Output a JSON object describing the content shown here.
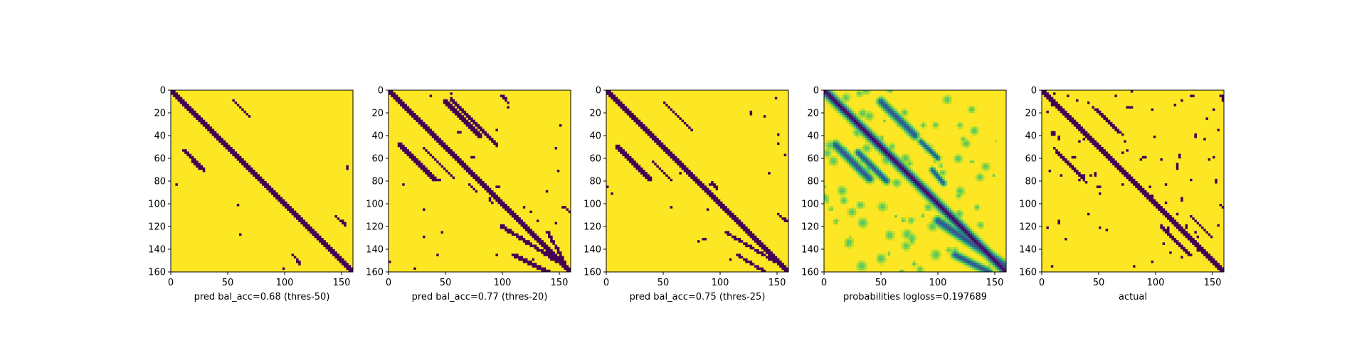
{
  "chart_data": [
    {
      "type": "heatmap",
      "xlabel": "pred bal_acc=0.68 (thres-50)",
      "mode": "binary",
      "xlim": [
        0,
        160
      ],
      "ylim": [
        160,
        0
      ],
      "xticks": [
        0,
        50,
        100,
        150
      ],
      "yticks": [
        0,
        20,
        40,
        60,
        80,
        100,
        120,
        140,
        160
      ],
      "features": {
        "diagonal": {
          "width": 1.6
        },
        "segments": [
          {
            "from": [
              12,
              53
            ],
            "to": [
              30,
              70
            ],
            "width": 1.1
          },
          {
            "from": [
              18,
              62
            ],
            "to": [
              30,
              72
            ],
            "width": 1.0
          },
          {
            "from": [
              55,
              9
            ],
            "to": [
              70,
              24
            ],
            "width": 1.0
          },
          {
            "from": [
              107,
              145
            ],
            "to": [
              113,
              152
            ],
            "width": 1.0
          },
          {
            "from": [
              145,
              111
            ],
            "to": [
              153,
              118
            ],
            "width": 1.0
          }
        ],
        "noise": 10
      }
    },
    {
      "type": "heatmap",
      "xlabel": "pred bal_acc=0.77 (thres-20)",
      "mode": "binary",
      "xlim": [
        0,
        160
      ],
      "ylim": [
        160,
        0
      ],
      "xticks": [
        0,
        50,
        100,
        150
      ],
      "yticks": [
        0,
        20,
        40,
        60,
        80,
        100,
        120,
        140,
        160
      ],
      "features": {
        "diagonal": {
          "width": 2.2
        },
        "segments": [
          {
            "from": [
              10,
              48
            ],
            "to": [
              40,
              78
            ],
            "width": 1.6
          },
          {
            "from": [
              30,
              50
            ],
            "to": [
              58,
              78
            ],
            "width": 1.4
          },
          {
            "from": [
              50,
              10
            ],
            "to": [
              80,
              40
            ],
            "width": 1.5
          },
          {
            "from": [
              55,
              8
            ],
            "to": [
              95,
              48
            ],
            "width": 1.0
          },
          {
            "from": [
              100,
              120
            ],
            "to": [
              160,
              158
            ],
            "width": 1.5
          },
          {
            "from": [
              110,
              145
            ],
            "to": [
              140,
              160
            ],
            "width": 1.5
          },
          {
            "from": [
              155,
              103
            ],
            "to": [
              160,
              108
            ],
            "width": 1.2
          },
          {
            "from": [
              140,
              125
            ],
            "to": [
              158,
              158
            ],
            "width": 1.2
          },
          {
            "from": [
              100,
              5
            ],
            "to": [
              106,
              12
            ],
            "width": 1.0
          },
          {
            "from": [
              70,
              82
            ],
            "to": [
              78,
              90
            ],
            "width": 1.0
          },
          {
            "from": [
              88,
              95
            ],
            "to": [
              92,
              100
            ],
            "width": 0.8
          }
        ],
        "noise": 40
      }
    },
    {
      "type": "heatmap",
      "xlabel": "pred bal_acc=0.75 (thres-25)",
      "mode": "binary",
      "xlim": [
        0,
        160
      ],
      "ylim": [
        160,
        0
      ],
      "xticks": [
        0,
        50,
        100,
        150
      ],
      "yticks": [
        0,
        20,
        40,
        60,
        80,
        100,
        120,
        140,
        160
      ],
      "features": {
        "diagonal": {
          "width": 2.0
        },
        "segments": [
          {
            "from": [
              10,
              50
            ],
            "to": [
              38,
              78
            ],
            "width": 1.5
          },
          {
            "from": [
              50,
              10
            ],
            "to": [
              75,
              35
            ],
            "width": 1.4
          },
          {
            "from": [
              40,
              62
            ],
            "to": [
              58,
              80
            ],
            "width": 1.2
          },
          {
            "from": [
              105,
              125
            ],
            "to": [
              160,
              158
            ],
            "width": 1.3
          },
          {
            "from": [
              115,
              145
            ],
            "to": [
              140,
              160
            ],
            "width": 1.2
          },
          {
            "from": [
              150,
              108
            ],
            "to": [
              158,
              115
            ],
            "width": 1.0
          },
          {
            "from": [
              92,
              80
            ],
            "to": [
              98,
              88
            ],
            "width": 1.0
          }
        ],
        "noise": 22
      }
    },
    {
      "type": "heatmap",
      "xlabel": "probabilities logloss=0.197689",
      "mode": "continuous",
      "xlim": [
        0,
        160
      ],
      "ylim": [
        160,
        0
      ],
      "xticks": [
        0,
        50,
        100,
        150
      ],
      "yticks": [
        0,
        20,
        40,
        60,
        80,
        100,
        120,
        140,
        160
      ],
      "features": {
        "diagonal": {
          "width": 2.4
        },
        "segments": [
          {
            "from": [
              10,
              48
            ],
            "to": [
              40,
              78
            ],
            "width": 2.2
          },
          {
            "from": [
              50,
              10
            ],
            "to": [
              80,
              40
            ],
            "width": 2.2
          },
          {
            "from": [
              30,
              55
            ],
            "to": [
              55,
              80
            ],
            "width": 1.8
          },
          {
            "from": [
              100,
              115
            ],
            "to": [
              160,
              155
            ],
            "width": 2.4
          },
          {
            "from": [
              115,
              145
            ],
            "to": [
              145,
              160
            ],
            "width": 2.0
          },
          {
            "from": [
              95,
              70
            ],
            "to": [
              105,
              82
            ],
            "width": 1.5
          },
          {
            "from": [
              85,
              45
            ],
            "to": [
              100,
              60
            ],
            "width": 1.5
          }
        ],
        "noise": 90
      }
    },
    {
      "type": "heatmap",
      "xlabel": "actual",
      "mode": "binary",
      "xlim": [
        0,
        160
      ],
      "ylim": [
        160,
        0
      ],
      "xticks": [
        0,
        50,
        100,
        150
      ],
      "yticks": [
        0,
        20,
        40,
        60,
        80,
        100,
        120,
        140,
        160
      ],
      "features": {
        "diagonal": {
          "width": 1.6
        },
        "segments": [
          {
            "from": [
              10,
              50
            ],
            "to": [
              40,
              82
            ],
            "width": 1.3
          },
          {
            "from": [
              45,
              15
            ],
            "to": [
              72,
              40
            ],
            "width": 1.3
          },
          {
            "from": [
              130,
              110
            ],
            "to": [
              150,
              130
            ],
            "width": 1.2
          },
          {
            "from": [
              105,
              120
            ],
            "to": [
              130,
              145
            ],
            "width": 1.2
          },
          {
            "from": [
              138,
              140
            ],
            "to": [
              158,
              158
            ],
            "width": 1.5
          },
          {
            "from": [
              156,
              100
            ],
            "to": [
              160,
              104
            ],
            "width": 1.0
          },
          {
            "from": [
              158,
              5
            ],
            "to": [
              160,
              10
            ],
            "width": 1.0
          }
        ],
        "noise": 120
      }
    }
  ]
}
